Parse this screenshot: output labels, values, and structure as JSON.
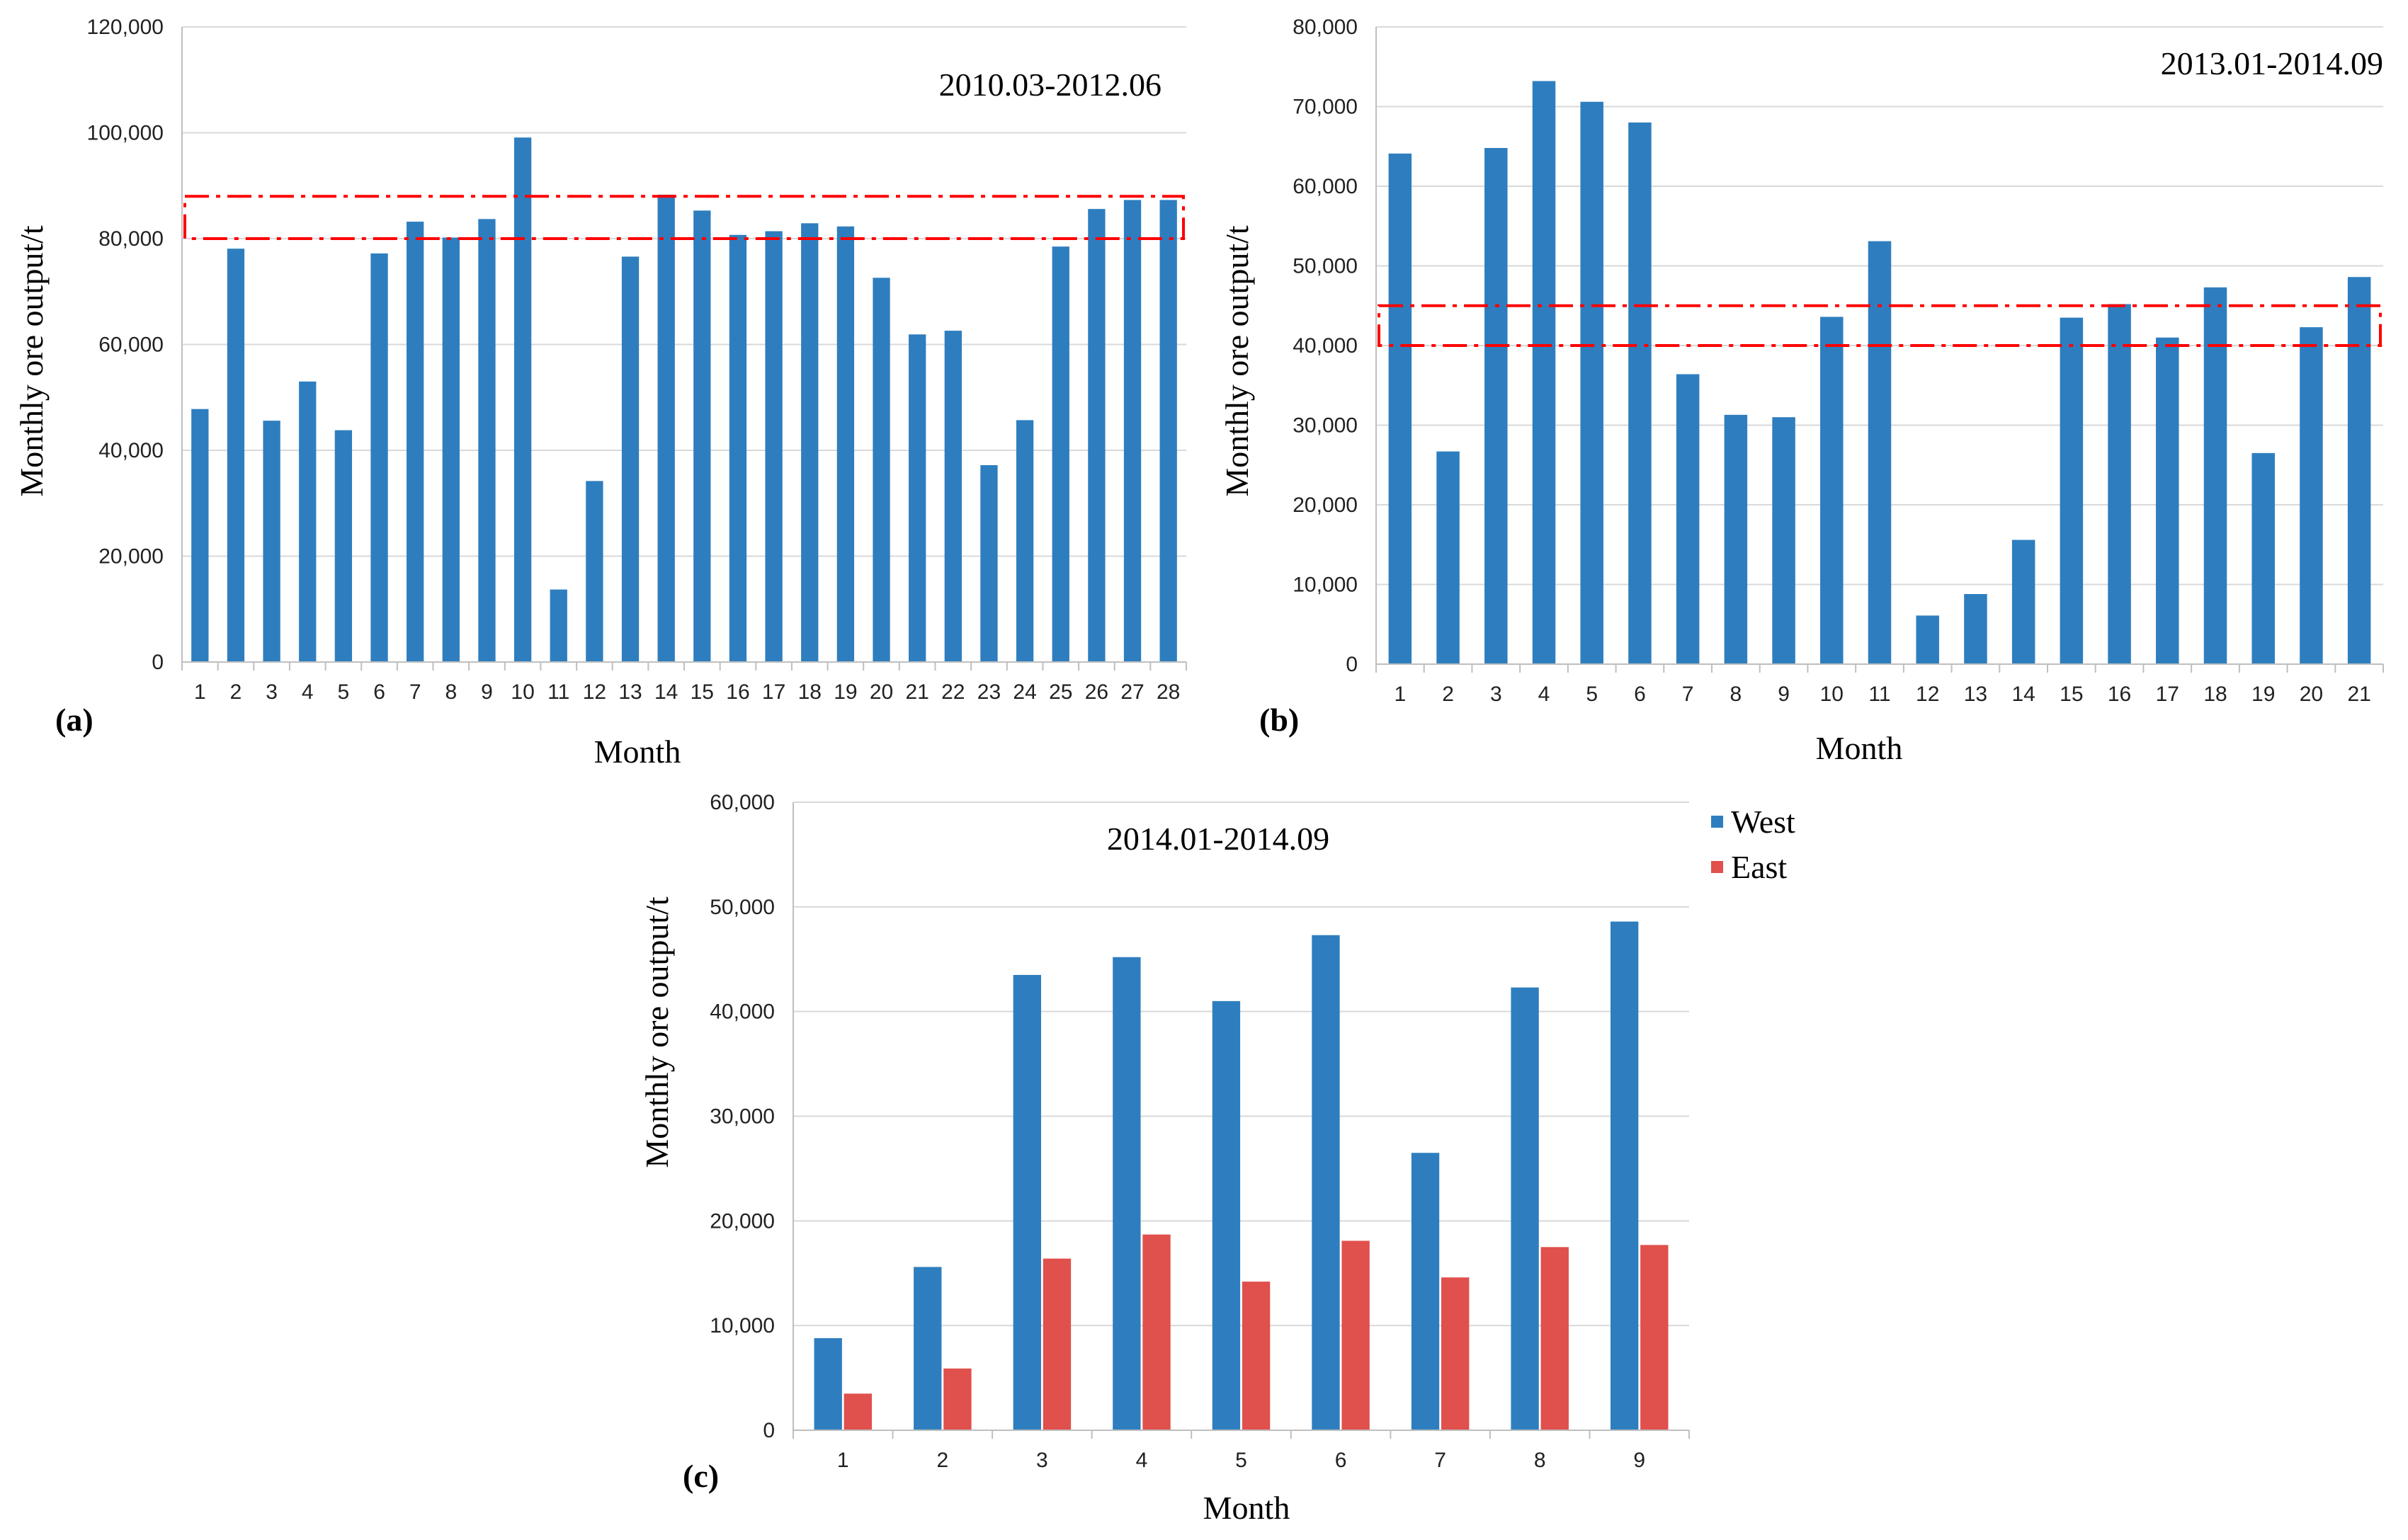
{
  "colors": {
    "west": "#2E7EBF",
    "east": "#E0504C",
    "highlight": "#FF0000",
    "grid": "#D9D9D9",
    "axis": "#BFBFBF"
  },
  "chart_data": [
    {
      "type": "bar",
      "panel_label": "(a)",
      "title": "2010.03-2012.06",
      "xlabel": "Month",
      "ylabel": "Monthly ore output/t",
      "ylim": [
        0,
        120000
      ],
      "yticks": [
        "0",
        "20,000",
        "40,000",
        "60,000",
        "80,000",
        "100,000",
        "120,000"
      ],
      "categories": [
        "1",
        "2",
        "3",
        "4",
        "5",
        "6",
        "7",
        "8",
        "9",
        "10",
        "11",
        "12",
        "13",
        "14",
        "15",
        "16",
        "17",
        "18",
        "19",
        "20",
        "21",
        "22",
        "23",
        "24",
        "25",
        "26",
        "27",
        "28"
      ],
      "series": [
        {
          "name": "West",
          "values": [
            47800,
            78100,
            45600,
            53000,
            43800,
            77200,
            83200,
            80200,
            83700,
            99100,
            13700,
            34200,
            76600,
            88300,
            85300,
            80700,
            81400,
            82900,
            82300,
            72600,
            61900,
            62600,
            37200,
            45700,
            78500,
            85600,
            87300,
            87300
          ]
        }
      ],
      "highlight_band": [
        80000,
        88000
      ],
      "grid": true
    },
    {
      "type": "bar",
      "panel_label": "(b)",
      "title": "2013.01-2014.09",
      "xlabel": "Month",
      "ylabel": "Monthly ore output/t",
      "ylim": [
        0,
        80000
      ],
      "yticks": [
        "0",
        "10,000",
        "20,000",
        "30,000",
        "40,000",
        "50,000",
        "60,000",
        "70,000",
        "80,000"
      ],
      "categories": [
        "1",
        "2",
        "3",
        "4",
        "5",
        "6",
        "7",
        "8",
        "9",
        "10",
        "11",
        "12",
        "13",
        "14",
        "15",
        "16",
        "17",
        "18",
        "19",
        "20",
        "21"
      ],
      "series": [
        {
          "name": "West",
          "values": [
            64100,
            26700,
            64800,
            73200,
            70600,
            68000,
            36400,
            31300,
            31000,
            43600,
            53100,
            6100,
            8800,
            15600,
            43500,
            45200,
            41000,
            47300,
            26500,
            42300,
            48600
          ]
        }
      ],
      "highlight_band": [
        40000,
        45000
      ],
      "grid": true
    },
    {
      "type": "bar",
      "panel_label": "(c)",
      "title": "2014.01-2014.09",
      "xlabel": "Month",
      "ylabel": "Monthly ore output/t",
      "ylim": [
        0,
        60000
      ],
      "yticks": [
        "0",
        "10,000",
        "20,000",
        "30,000",
        "40,000",
        "50,000",
        "60,000"
      ],
      "categories": [
        "1",
        "2",
        "3",
        "4",
        "5",
        "6",
        "7",
        "8",
        "9"
      ],
      "series": [
        {
          "name": "West",
          "values": [
            8800,
            15600,
            43500,
            45200,
            41000,
            47300,
            26500,
            42300,
            48600
          ]
        },
        {
          "name": "East",
          "values": [
            3500,
            5900,
            16400,
            18700,
            14200,
            18100,
            14600,
            17500,
            17700
          ]
        }
      ],
      "legend": [
        "West",
        "East"
      ],
      "legend_position": "right",
      "grid": true
    }
  ]
}
